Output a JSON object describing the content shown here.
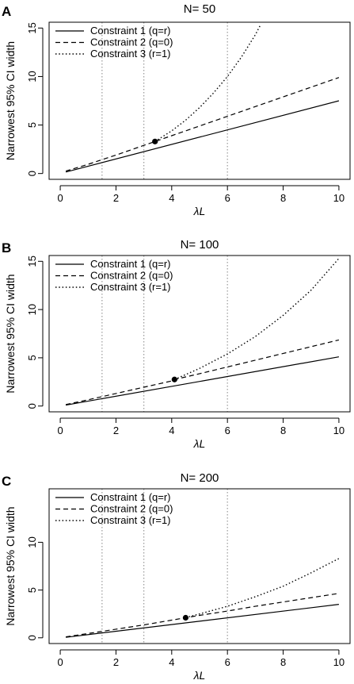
{
  "chart_data": [
    {
      "type": "line",
      "panel_label": "A",
      "title": "N= 50",
      "xlabel": "λL",
      "ylabel": "Narrowest 95% CI width",
      "xlim": [
        -0.4,
        10.4
      ],
      "ylim": [
        -0.6,
        15.6
      ],
      "x_ticks": [
        0,
        2,
        4,
        6,
        8,
        10
      ],
      "y_ticks": [
        0,
        5,
        10,
        15
      ],
      "vlines": [
        1.5,
        3,
        6
      ],
      "legend": "top-left",
      "series": [
        {
          "name": "Constraint 1 (q=r)",
          "style": "solid",
          "x": [
            0.2,
            10
          ],
          "y": [
            0.15,
            7.5
          ]
        },
        {
          "name": "Constraint 2 (q=0)",
          "style": "dashed",
          "x": [
            0.2,
            1,
            2,
            3,
            3.4,
            4,
            5,
            6,
            7,
            8,
            9,
            10
          ],
          "y": [
            0.25,
            0.95,
            1.9,
            2.9,
            3.3,
            3.9,
            4.9,
            5.9,
            6.9,
            7.9,
            8.9,
            9.9
          ]
        },
        {
          "name": "Constraint 3 (r=1)",
          "style": "dotted",
          "x": [
            3.4,
            4,
            4.5,
            5,
            5.5,
            6,
            6.5,
            7,
            7.2
          ],
          "y": [
            3.3,
            4.4,
            5.5,
            6.8,
            8.3,
            10.0,
            12.0,
            14.3,
            15.4
          ]
        }
      ],
      "point": {
        "x": 3.4,
        "y": 3.3
      }
    },
    {
      "type": "line",
      "panel_label": "B",
      "title": "N= 100",
      "xlabel": "λL",
      "ylabel": "Narrowest 95% CI width",
      "xlim": [
        -0.4,
        10.4
      ],
      "ylim": [
        -0.6,
        15.6
      ],
      "x_ticks": [
        0,
        2,
        4,
        6,
        8,
        10
      ],
      "y_ticks": [
        0,
        5,
        10,
        15
      ],
      "vlines": [
        1.5,
        3,
        6
      ],
      "legend": "top-left",
      "series": [
        {
          "name": "Constraint 1 (q=r)",
          "style": "solid",
          "x": [
            0.2,
            10
          ],
          "y": [
            0.1,
            5.1
          ]
        },
        {
          "name": "Constraint 2 (q=0)",
          "style": "dashed",
          "x": [
            0.2,
            1,
            2,
            3,
            4,
            4.1,
            5,
            6,
            7,
            8,
            9,
            10
          ],
          "y": [
            0.15,
            0.65,
            1.3,
            1.95,
            2.6,
            2.75,
            3.35,
            4.05,
            4.75,
            5.45,
            6.15,
            6.85
          ]
        },
        {
          "name": "Constraint 3 (r=1)",
          "style": "dotted",
          "x": [
            4.1,
            5,
            6,
            7,
            8,
            9,
            10
          ],
          "y": [
            2.75,
            3.9,
            5.4,
            7.2,
            9.4,
            12.0,
            15.3
          ]
        }
      ],
      "point": {
        "x": 4.1,
        "y": 2.75
      }
    },
    {
      "type": "line",
      "panel_label": "C",
      "title": "N= 200",
      "xlabel": "λL",
      "ylabel": "Narrowest 95% CI width",
      "xlim": [
        -0.4,
        10.4
      ],
      "ylim": [
        -0.6,
        15.6
      ],
      "x_ticks": [
        0,
        2,
        4,
        6,
        8,
        10
      ],
      "y_ticks": [
        0,
        5,
        10
      ],
      "vlines": [
        1.5,
        3,
        6
      ],
      "legend": "top-left",
      "series": [
        {
          "name": "Constraint 1 (q=r)",
          "style": "solid",
          "x": [
            0.2,
            10
          ],
          "y": [
            0.05,
            3.5
          ]
        },
        {
          "name": "Constraint 2 (q=0)",
          "style": "dashed",
          "x": [
            0.2,
            1,
            2,
            3,
            4,
            4.5,
            5,
            6,
            7,
            8,
            9,
            10
          ],
          "y": [
            0.1,
            0.45,
            0.9,
            1.35,
            1.85,
            2.1,
            2.35,
            2.8,
            3.3,
            3.75,
            4.2,
            4.65
          ]
        },
        {
          "name": "Constraint 3 (r=1)",
          "style": "dotted",
          "x": [
            4.5,
            5,
            6,
            7,
            8,
            9,
            10
          ],
          "y": [
            2.1,
            2.5,
            3.3,
            4.3,
            5.4,
            6.8,
            8.3
          ]
        }
      ],
      "point": {
        "x": 4.5,
        "y": 2.1
      }
    }
  ]
}
